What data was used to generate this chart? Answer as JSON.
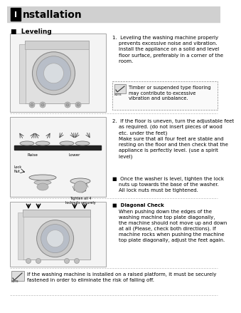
{
  "bg_color": "#ffffff",
  "header_bg": "#d0d0d0",
  "title": "nstallation",
  "section": "Leveling",
  "text1": "1.  Leveling the washing machine properly\n    prevents excessive noise and vibration.\n    Install the appliance on a solid and level\n    floor surface, preferably in a corner of the\n    room.",
  "note1": "Timber or suspended type flooring\nmay contribute to excessive\nvibration and unbalance.",
  "text2": "2.  If the floor is uneven, turn the adjustable feet\n    as required. (do not insert pieces of wood\n    etc. under the feet)\n    Make sure that all four feet are stable and\n    resting on the floor and then check that the\n    appliance is perfectly level. (use a spirit\n    level)",
  "bullet1": "■  Once the washer is level, tighten the lock\n    nuts up towards the base of the washer.\n    All lock nuts must be tightened.",
  "bullet2_header": "■  Diagonal Check",
  "bullet2": "    When pushing down the edges of the\n    washing machine top plate diagonally,\n    the machine should not move up and down\n    at all (Please, check both directions). If\n    machine rocks when pushing the machine\n    top plate diagonally, adjust the feet again.",
  "footer_note": "If the washing machine is installed on a raised platform, it must be securely\nfastened in order to eliminate the risk of falling off.",
  "raise_label": "Raise",
  "lower_label": "Lower",
  "tighten_label": "Tighten all 4\nlocknuts securely",
  "locknut_label": "Lock\nNut"
}
